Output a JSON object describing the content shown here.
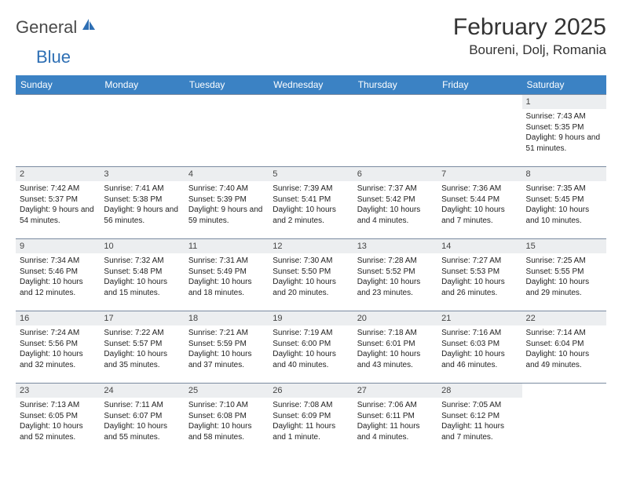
{
  "brand": {
    "word1": "General",
    "word2": "Blue",
    "text_color_1": "#4a4a4a",
    "text_color_2": "#2e6fb4",
    "icon_color": "#2e6fb4"
  },
  "title": "February 2025",
  "location": "Boureni, Dolj, Romania",
  "colors": {
    "header_bg": "#3b82c4",
    "header_fg": "#ffffff",
    "daynum_bg": "#eceef0",
    "cell_border": "#7a8aa0",
    "page_bg": "#ffffff"
  },
  "weekdays": [
    "Sunday",
    "Monday",
    "Tuesday",
    "Wednesday",
    "Thursday",
    "Friday",
    "Saturday"
  ],
  "weeks": [
    [
      null,
      null,
      null,
      null,
      null,
      null,
      {
        "n": "1",
        "sunrise": "Sunrise: 7:43 AM",
        "sunset": "Sunset: 5:35 PM",
        "daylight": "Daylight: 9 hours and 51 minutes."
      }
    ],
    [
      {
        "n": "2",
        "sunrise": "Sunrise: 7:42 AM",
        "sunset": "Sunset: 5:37 PM",
        "daylight": "Daylight: 9 hours and 54 minutes."
      },
      {
        "n": "3",
        "sunrise": "Sunrise: 7:41 AM",
        "sunset": "Sunset: 5:38 PM",
        "daylight": "Daylight: 9 hours and 56 minutes."
      },
      {
        "n": "4",
        "sunrise": "Sunrise: 7:40 AM",
        "sunset": "Sunset: 5:39 PM",
        "daylight": "Daylight: 9 hours and 59 minutes."
      },
      {
        "n": "5",
        "sunrise": "Sunrise: 7:39 AM",
        "sunset": "Sunset: 5:41 PM",
        "daylight": "Daylight: 10 hours and 2 minutes."
      },
      {
        "n": "6",
        "sunrise": "Sunrise: 7:37 AM",
        "sunset": "Sunset: 5:42 PM",
        "daylight": "Daylight: 10 hours and 4 minutes."
      },
      {
        "n": "7",
        "sunrise": "Sunrise: 7:36 AM",
        "sunset": "Sunset: 5:44 PM",
        "daylight": "Daylight: 10 hours and 7 minutes."
      },
      {
        "n": "8",
        "sunrise": "Sunrise: 7:35 AM",
        "sunset": "Sunset: 5:45 PM",
        "daylight": "Daylight: 10 hours and 10 minutes."
      }
    ],
    [
      {
        "n": "9",
        "sunrise": "Sunrise: 7:34 AM",
        "sunset": "Sunset: 5:46 PM",
        "daylight": "Daylight: 10 hours and 12 minutes."
      },
      {
        "n": "10",
        "sunrise": "Sunrise: 7:32 AM",
        "sunset": "Sunset: 5:48 PM",
        "daylight": "Daylight: 10 hours and 15 minutes."
      },
      {
        "n": "11",
        "sunrise": "Sunrise: 7:31 AM",
        "sunset": "Sunset: 5:49 PM",
        "daylight": "Daylight: 10 hours and 18 minutes."
      },
      {
        "n": "12",
        "sunrise": "Sunrise: 7:30 AM",
        "sunset": "Sunset: 5:50 PM",
        "daylight": "Daylight: 10 hours and 20 minutes."
      },
      {
        "n": "13",
        "sunrise": "Sunrise: 7:28 AM",
        "sunset": "Sunset: 5:52 PM",
        "daylight": "Daylight: 10 hours and 23 minutes."
      },
      {
        "n": "14",
        "sunrise": "Sunrise: 7:27 AM",
        "sunset": "Sunset: 5:53 PM",
        "daylight": "Daylight: 10 hours and 26 minutes."
      },
      {
        "n": "15",
        "sunrise": "Sunrise: 7:25 AM",
        "sunset": "Sunset: 5:55 PM",
        "daylight": "Daylight: 10 hours and 29 minutes."
      }
    ],
    [
      {
        "n": "16",
        "sunrise": "Sunrise: 7:24 AM",
        "sunset": "Sunset: 5:56 PM",
        "daylight": "Daylight: 10 hours and 32 minutes."
      },
      {
        "n": "17",
        "sunrise": "Sunrise: 7:22 AM",
        "sunset": "Sunset: 5:57 PM",
        "daylight": "Daylight: 10 hours and 35 minutes."
      },
      {
        "n": "18",
        "sunrise": "Sunrise: 7:21 AM",
        "sunset": "Sunset: 5:59 PM",
        "daylight": "Daylight: 10 hours and 37 minutes."
      },
      {
        "n": "19",
        "sunrise": "Sunrise: 7:19 AM",
        "sunset": "Sunset: 6:00 PM",
        "daylight": "Daylight: 10 hours and 40 minutes."
      },
      {
        "n": "20",
        "sunrise": "Sunrise: 7:18 AM",
        "sunset": "Sunset: 6:01 PM",
        "daylight": "Daylight: 10 hours and 43 minutes."
      },
      {
        "n": "21",
        "sunrise": "Sunrise: 7:16 AM",
        "sunset": "Sunset: 6:03 PM",
        "daylight": "Daylight: 10 hours and 46 minutes."
      },
      {
        "n": "22",
        "sunrise": "Sunrise: 7:14 AM",
        "sunset": "Sunset: 6:04 PM",
        "daylight": "Daylight: 10 hours and 49 minutes."
      }
    ],
    [
      {
        "n": "23",
        "sunrise": "Sunrise: 7:13 AM",
        "sunset": "Sunset: 6:05 PM",
        "daylight": "Daylight: 10 hours and 52 minutes."
      },
      {
        "n": "24",
        "sunrise": "Sunrise: 7:11 AM",
        "sunset": "Sunset: 6:07 PM",
        "daylight": "Daylight: 10 hours and 55 minutes."
      },
      {
        "n": "25",
        "sunrise": "Sunrise: 7:10 AM",
        "sunset": "Sunset: 6:08 PM",
        "daylight": "Daylight: 10 hours and 58 minutes."
      },
      {
        "n": "26",
        "sunrise": "Sunrise: 7:08 AM",
        "sunset": "Sunset: 6:09 PM",
        "daylight": "Daylight: 11 hours and 1 minute."
      },
      {
        "n": "27",
        "sunrise": "Sunrise: 7:06 AM",
        "sunset": "Sunset: 6:11 PM",
        "daylight": "Daylight: 11 hours and 4 minutes."
      },
      {
        "n": "28",
        "sunrise": "Sunrise: 7:05 AM",
        "sunset": "Sunset: 6:12 PM",
        "daylight": "Daylight: 11 hours and 7 minutes."
      },
      null
    ]
  ]
}
